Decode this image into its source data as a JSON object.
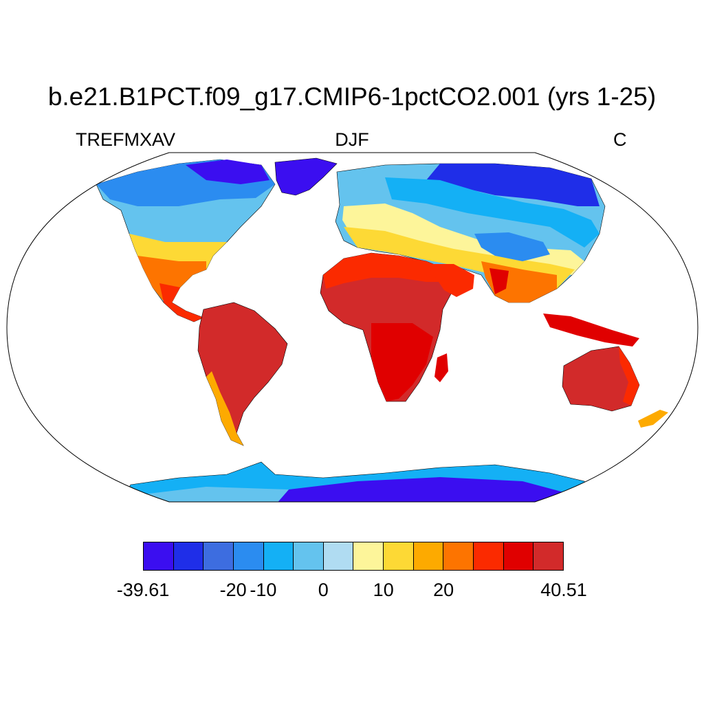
{
  "title": "b.e21.B1PCT.f09_g17.CMIP6-1pctCO2.001 (yrs 1-25)",
  "variable": "TREFMXAV",
  "season": "DJF",
  "units": "C",
  "colorbar": {
    "colors": [
      "#3b0ef0",
      "#1f2ee8",
      "#3d6de0",
      "#2b8cf0",
      "#14b0f5",
      "#64c3ee",
      "#b0dcf2",
      "#fdf59a",
      "#fdd935",
      "#fdaa00",
      "#fd7400",
      "#fb2a00",
      "#e00000",
      "#d22a2a"
    ],
    "labels": [
      "-39.61",
      "-20",
      "-10",
      "0",
      "10",
      "20",
      "40.51"
    ]
  },
  "palette": {
    "ocean": "#ffffff",
    "frame": "#000000"
  }
}
